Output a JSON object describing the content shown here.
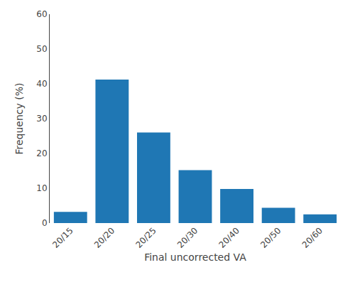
{
  "chart_data": {
    "type": "bar",
    "categories": [
      "20/15",
      "20/20",
      "20/25",
      "20/30",
      "20/40",
      "20/50",
      "20/60"
    ],
    "values": [
      3.2,
      41.2,
      26.0,
      15.2,
      9.8,
      4.4,
      2.5
    ],
    "xlabel": "Final uncorrected VA",
    "ylabel": "Frequency (%)",
    "ylim": [
      0,
      60
    ],
    "yticks": [
      0,
      10,
      20,
      30,
      40,
      50,
      60
    ],
    "grid": false
  }
}
